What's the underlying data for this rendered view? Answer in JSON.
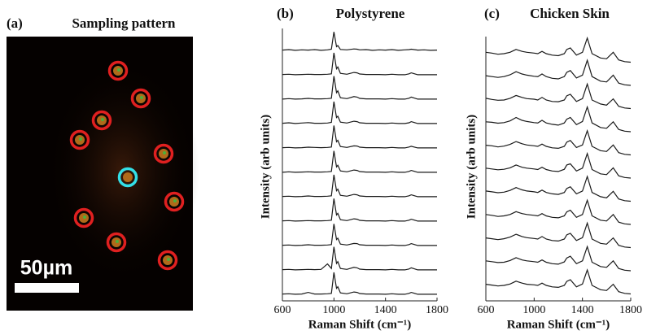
{
  "chart_data": [
    {
      "type": "image",
      "panel_label": "(a)",
      "title": "Sampling pattern",
      "scale_bar_label": "50µm"
    },
    {
      "type": "line",
      "panel_label": "(b)",
      "title": "Polystyrene",
      "x_label": "Raman Shift (cm⁻¹)",
      "y_label": "Intensity (arb units)",
      "color": "#1a1a1a",
      "xlim": [
        600,
        1800
      ],
      "xticks": [
        600,
        1000,
        1400,
        1800
      ],
      "x": [
        600,
        650,
        700,
        750,
        800,
        850,
        900,
        950,
        980,
        1000,
        1020,
        1030,
        1050,
        1100,
        1155,
        1180,
        1200,
        1250,
        1300,
        1350,
        1400,
        1450,
        1500,
        1550,
        1583,
        1600,
        1650,
        1700,
        1750,
        1800
      ],
      "series": [
        {
          "values": [
            0.05,
            0.07,
            0.04,
            0.06,
            0.05,
            0.07,
            0.04,
            0.06,
            0.09,
            0.85,
            0.2,
            0.25,
            0.08,
            0.06,
            0.1,
            0.09,
            0.06,
            0.07,
            0.04,
            0.06,
            0.05,
            0.07,
            0.04,
            0.06,
            0.07,
            0.09,
            0.05,
            0.06,
            0.04,
            0.05
          ]
        },
        {
          "values": [
            0.05,
            0.06,
            0.04,
            0.05,
            0.06,
            0.05,
            0.05,
            0.06,
            0.08,
            1.0,
            0.3,
            0.38,
            0.1,
            0.06,
            0.14,
            0.12,
            0.07,
            0.05,
            0.05,
            0.05,
            0.04,
            0.06,
            0.04,
            0.04,
            0.08,
            0.12,
            0.04,
            0.04,
            0.04,
            0.04
          ]
        },
        {
          "values": [
            0.04,
            0.06,
            0.04,
            0.05,
            0.07,
            0.05,
            0.05,
            0.06,
            0.08,
            1.05,
            0.32,
            0.4,
            0.1,
            0.06,
            0.15,
            0.13,
            0.07,
            0.05,
            0.05,
            0.05,
            0.04,
            0.06,
            0.04,
            0.04,
            0.08,
            0.13,
            0.04,
            0.04,
            0.04,
            0.04
          ]
        },
        {
          "values": [
            0.05,
            0.07,
            0.04,
            0.06,
            0.08,
            0.05,
            0.05,
            0.06,
            0.09,
            1.0,
            0.3,
            0.36,
            0.1,
            0.06,
            0.14,
            0.12,
            0.07,
            0.05,
            0.05,
            0.05,
            0.04,
            0.06,
            0.04,
            0.04,
            0.07,
            0.12,
            0.04,
            0.04,
            0.04,
            0.04
          ]
        },
        {
          "values": [
            0.05,
            0.06,
            0.04,
            0.05,
            0.07,
            0.06,
            0.05,
            0.06,
            0.08,
            1.02,
            0.31,
            0.37,
            0.1,
            0.06,
            0.13,
            0.12,
            0.07,
            0.05,
            0.05,
            0.05,
            0.04,
            0.06,
            0.04,
            0.04,
            0.08,
            0.11,
            0.04,
            0.04,
            0.04,
            0.04
          ]
        },
        {
          "values": [
            0.04,
            0.06,
            0.04,
            0.05,
            0.06,
            0.05,
            0.05,
            0.06,
            0.08,
            0.98,
            0.28,
            0.35,
            0.1,
            0.06,
            0.14,
            0.12,
            0.07,
            0.05,
            0.05,
            0.05,
            0.04,
            0.06,
            0.04,
            0.04,
            0.08,
            0.12,
            0.04,
            0.04,
            0.04,
            0.04
          ]
        },
        {
          "values": [
            0.05,
            0.06,
            0.04,
            0.05,
            0.07,
            0.05,
            0.05,
            0.06,
            0.08,
            1.0,
            0.3,
            0.37,
            0.1,
            0.06,
            0.14,
            0.12,
            0.07,
            0.05,
            0.05,
            0.05,
            0.04,
            0.06,
            0.04,
            0.04,
            0.08,
            0.12,
            0.04,
            0.04,
            0.04,
            0.04
          ]
        },
        {
          "values": [
            0.05,
            0.06,
            0.04,
            0.05,
            0.06,
            0.05,
            0.05,
            0.06,
            0.08,
            1.03,
            0.31,
            0.38,
            0.1,
            0.06,
            0.14,
            0.12,
            0.07,
            0.05,
            0.05,
            0.05,
            0.04,
            0.06,
            0.04,
            0.04,
            0.08,
            0.12,
            0.04,
            0.04,
            0.04,
            0.04
          ]
        },
        {
          "values": [
            0.05,
            0.06,
            0.04,
            0.05,
            0.07,
            0.05,
            0.05,
            0.06,
            0.08,
            0.99,
            0.3,
            0.36,
            0.1,
            0.06,
            0.13,
            0.12,
            0.07,
            0.05,
            0.05,
            0.05,
            0.04,
            0.06,
            0.04,
            0.04,
            0.08,
            0.12,
            0.04,
            0.04,
            0.04,
            0.04
          ]
        },
        {
          "values": [
            0.05,
            0.06,
            0.04,
            0.05,
            0.06,
            0.05,
            0.06,
            0.3,
            0.1,
            1.05,
            0.32,
            0.4,
            0.1,
            0.06,
            0.15,
            0.13,
            0.07,
            0.05,
            0.05,
            0.05,
            0.04,
            0.06,
            0.04,
            0.04,
            0.08,
            0.13,
            0.04,
            0.04,
            0.04,
            0.04
          ]
        },
        {
          "values": [
            0.05,
            0.06,
            0.04,
            0.05,
            0.12,
            0.05,
            0.05,
            0.06,
            0.08,
            1.0,
            0.3,
            0.37,
            0.1,
            0.06,
            0.14,
            0.12,
            0.07,
            0.05,
            0.05,
            0.05,
            0.04,
            0.06,
            0.04,
            0.04,
            0.08,
            0.12,
            0.04,
            0.04,
            0.04,
            0.04
          ]
        }
      ]
    },
    {
      "type": "line",
      "panel_label": "(c)",
      "title": "Chicken Skin",
      "x_label": "Raman Shift (cm⁻¹)",
      "y_label": "Intensity (arb units)",
      "color": "#1a1a1a",
      "xlim": [
        600,
        1800
      ],
      "xticks": [
        600,
        1000,
        1400,
        1800
      ],
      "x": [
        600,
        650,
        700,
        750,
        800,
        850,
        900,
        940,
        1000,
        1030,
        1065,
        1100,
        1150,
        1200,
        1250,
        1270,
        1300,
        1350,
        1400,
        1440,
        1480,
        1550,
        1600,
        1655,
        1700,
        1750,
        1800
      ],
      "series": [
        {
          "values": [
            0.45,
            0.42,
            0.38,
            0.4,
            0.45,
            0.55,
            0.48,
            0.45,
            0.42,
            0.4,
            0.48,
            0.4,
            0.35,
            0.33,
            0.4,
            0.55,
            0.6,
            0.35,
            0.45,
            0.95,
            0.4,
            0.25,
            0.22,
            0.45,
            0.18,
            0.12,
            0.1
          ]
        },
        {
          "values": [
            0.44,
            0.41,
            0.38,
            0.41,
            0.47,
            0.58,
            0.5,
            0.46,
            0.42,
            0.41,
            0.5,
            0.41,
            0.35,
            0.33,
            0.41,
            0.56,
            0.62,
            0.36,
            0.46,
            0.98,
            0.41,
            0.25,
            0.22,
            0.46,
            0.18,
            0.12,
            0.1
          ]
        },
        {
          "values": [
            0.46,
            0.42,
            0.39,
            0.4,
            0.46,
            0.56,
            0.49,
            0.45,
            0.43,
            0.4,
            0.49,
            0.4,
            0.35,
            0.34,
            0.4,
            0.55,
            0.6,
            0.35,
            0.45,
            0.96,
            0.4,
            0.26,
            0.22,
            0.44,
            0.18,
            0.12,
            0.1
          ]
        },
        {
          "values": [
            0.45,
            0.43,
            0.4,
            0.42,
            0.48,
            0.6,
            0.5,
            0.46,
            0.42,
            0.41,
            0.5,
            0.41,
            0.36,
            0.33,
            0.41,
            0.54,
            0.6,
            0.35,
            0.46,
            0.97,
            0.41,
            0.25,
            0.22,
            0.45,
            0.18,
            0.12,
            0.1
          ]
        },
        {
          "values": [
            0.44,
            0.42,
            0.38,
            0.41,
            0.47,
            0.57,
            0.49,
            0.45,
            0.42,
            0.4,
            0.48,
            0.4,
            0.35,
            0.33,
            0.4,
            0.55,
            0.61,
            0.36,
            0.45,
            0.95,
            0.4,
            0.25,
            0.22,
            0.45,
            0.18,
            0.12,
            0.1
          ]
        },
        {
          "values": [
            0.45,
            0.42,
            0.39,
            0.41,
            0.46,
            0.56,
            0.48,
            0.45,
            0.42,
            0.4,
            0.48,
            0.4,
            0.35,
            0.33,
            0.41,
            0.56,
            0.6,
            0.35,
            0.45,
            0.96,
            0.4,
            0.25,
            0.22,
            0.46,
            0.18,
            0.12,
            0.1
          ]
        },
        {
          "values": [
            0.46,
            0.43,
            0.4,
            0.42,
            0.48,
            0.58,
            0.5,
            0.46,
            0.43,
            0.41,
            0.49,
            0.41,
            0.36,
            0.34,
            0.41,
            0.55,
            0.61,
            0.36,
            0.46,
            0.97,
            0.41,
            0.26,
            0.22,
            0.45,
            0.18,
            0.12,
            0.1
          ]
        },
        {
          "values": [
            0.45,
            0.42,
            0.38,
            0.4,
            0.45,
            0.55,
            0.48,
            0.45,
            0.42,
            0.4,
            0.48,
            0.4,
            0.35,
            0.33,
            0.4,
            0.54,
            0.6,
            0.35,
            0.45,
            0.95,
            0.4,
            0.25,
            0.22,
            0.45,
            0.18,
            0.12,
            0.1
          ]
        },
        {
          "values": [
            0.44,
            0.41,
            0.38,
            0.41,
            0.47,
            0.57,
            0.49,
            0.45,
            0.42,
            0.4,
            0.49,
            0.4,
            0.35,
            0.33,
            0.4,
            0.55,
            0.6,
            0.35,
            0.45,
            0.96,
            0.4,
            0.25,
            0.22,
            0.44,
            0.18,
            0.12,
            0.1
          ]
        },
        {
          "values": [
            0.45,
            0.42,
            0.39,
            0.4,
            0.46,
            0.56,
            0.48,
            0.45,
            0.42,
            0.4,
            0.48,
            0.4,
            0.35,
            0.33,
            0.41,
            0.55,
            0.61,
            0.35,
            0.45,
            0.95,
            0.4,
            0.25,
            0.22,
            0.45,
            0.18,
            0.12,
            0.1
          ]
        },
        {
          "values": [
            0.44,
            0.41,
            0.38,
            0.4,
            0.45,
            0.55,
            0.48,
            0.44,
            0.42,
            0.4,
            0.48,
            0.4,
            0.35,
            0.33,
            0.4,
            0.54,
            0.6,
            0.35,
            0.45,
            0.94,
            0.4,
            0.25,
            0.22,
            0.44,
            0.18,
            0.12,
            0.1
          ]
        }
      ]
    }
  ]
}
